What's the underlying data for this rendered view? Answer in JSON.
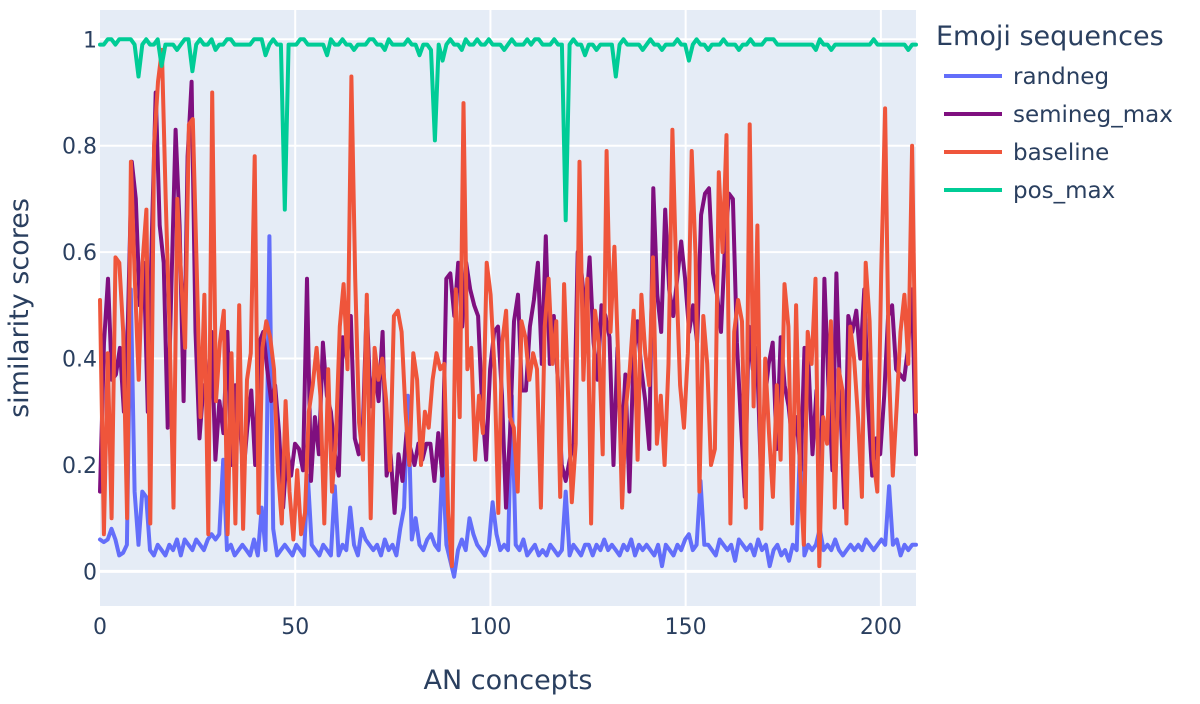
{
  "chart_data": {
    "type": "line",
    "title": "",
    "xlabel": "AN concepts",
    "ylabel": "similarity scores",
    "xlim": [
      0,
      209
    ],
    "ylim": [
      -0.065,
      1.055
    ],
    "x_ticks": [
      0,
      50,
      100,
      150,
      200
    ],
    "y_ticks": [
      0,
      0.2,
      0.4,
      0.6,
      0.8,
      1
    ],
    "y_tick_labels": [
      "0",
      "0.2",
      "0.4",
      "0.6",
      "0.8",
      "1"
    ],
    "grid": true,
    "legend": {
      "title": "Emoji sequences",
      "placement": "right"
    },
    "series": [
      {
        "name": "randneg",
        "color": "#636efa",
        "values": [
          0.06,
          0.055,
          0.06,
          0.08,
          0.06,
          0.03,
          0.035,
          0.05,
          0.53,
          0.15,
          0.05,
          0.15,
          0.14,
          0.04,
          0.03,
          0.05,
          0.04,
          0.03,
          0.05,
          0.04,
          0.06,
          0.03,
          0.06,
          0.05,
          0.04,
          0.06,
          0.05,
          0.04,
          0.06,
          0.07,
          0.06,
          0.07,
          0.21,
          0.04,
          0.05,
          0.03,
          0.04,
          0.05,
          0.04,
          0.03,
          0.06,
          0.03,
          0.12,
          0.04,
          0.63,
          0.08,
          0.03,
          0.04,
          0.05,
          0.04,
          0.03,
          0.05,
          0.04,
          0.03,
          0.18,
          0.05,
          0.04,
          0.03,
          0.05,
          0.04,
          0.03,
          0.16,
          0.03,
          0.05,
          0.04,
          0.12,
          0.05,
          0.03,
          0.08,
          0.06,
          0.05,
          0.04,
          0.05,
          0.03,
          0.06,
          0.04,
          0.05,
          0.03,
          0.08,
          0.12,
          0.33,
          0.06,
          0.1,
          0.05,
          0.04,
          0.06,
          0.07,
          0.05,
          0.04,
          0.21,
          0.05,
          0.02,
          -0.01,
          0.04,
          0.06,
          0.04,
          0.1,
          0.07,
          0.05,
          0.04,
          0.03,
          0.05,
          0.13,
          0.07,
          0.04,
          0.05,
          0.04,
          0.33,
          0.05,
          0.04,
          0.06,
          0.03,
          0.04,
          0.05,
          0.03,
          0.04,
          0.03,
          0.05,
          0.04,
          0.03,
          0.04,
          0.15,
          0.03,
          0.05,
          0.04,
          0.03,
          0.05,
          0.05,
          0.03,
          0.05,
          0.04,
          0.06,
          0.04,
          0.05,
          0.04,
          0.03,
          0.05,
          0.04,
          0.06,
          0.03,
          0.05,
          0.04,
          0.05,
          0.04,
          0.03,
          0.05,
          0.01,
          0.05,
          0.04,
          0.03,
          0.05,
          0.04,
          0.06,
          0.07,
          0.04,
          0.05,
          0.17,
          0.05,
          0.05,
          0.04,
          0.03,
          0.06,
          0.05,
          0.04,
          0.05,
          0.02,
          0.06,
          0.05,
          0.04,
          0.05,
          0.03,
          0.06,
          0.04,
          0.05,
          0.01,
          0.04,
          0.05,
          0.03,
          0.04,
          0.02,
          0.05,
          0.04,
          0.27,
          0.03,
          0.05,
          0.04,
          0.05,
          0.08,
          0.04,
          0.05,
          0.04,
          0.06,
          0.04,
          0.03,
          0.04,
          0.05,
          0.04,
          0.05,
          0.04,
          0.06,
          0.05,
          0.04,
          0.05,
          0.06,
          0.05,
          0.16,
          0.05,
          0.06,
          0.03,
          0.05,
          0.04,
          0.05,
          0.05
        ]
      },
      {
        "name": "semineg_max",
        "color": "#7f0f7f",
        "values": [
          0.15,
          0.43,
          0.55,
          0.36,
          0.37,
          0.42,
          0.3,
          0.47,
          0.77,
          0.7,
          0.5,
          0.58,
          0.3,
          0.62,
          0.9,
          0.65,
          0.58,
          0.27,
          0.55,
          0.83,
          0.65,
          0.32,
          0.78,
          0.92,
          0.45,
          0.25,
          0.35,
          0.32,
          0.45,
          0.21,
          0.32,
          0.26,
          0.45,
          0.2,
          0.35,
          0.3,
          0.18,
          0.27,
          0.34,
          0.2,
          0.43,
          0.45,
          0.38,
          0.32,
          0.35,
          0.26,
          0.12,
          0.23,
          0.18,
          0.24,
          0.23,
          0.19,
          0.55,
          0.17,
          0.29,
          0.22,
          0.43,
          0.33,
          0.3,
          0.22,
          0.18,
          0.44,
          0.4,
          0.48,
          0.25,
          0.22,
          0.26,
          0.5,
          0.31,
          0.38,
          0.32,
          0.45,
          0.18,
          0.22,
          0.11,
          0.22,
          0.17,
          0.26,
          0.23,
          0.2,
          0.24,
          0.21,
          0.24,
          0.24,
          0.17,
          0.26,
          0.18,
          0.55,
          0.56,
          0.48,
          0.58,
          0.46,
          0.58,
          0.53,
          0.5,
          0.48,
          0.31,
          0.21,
          0.38,
          0.45,
          0.46,
          0.33,
          0.12,
          0.26,
          0.47,
          0.52,
          0.34,
          0.34,
          0.46,
          0.51,
          0.58,
          0.39,
          0.63,
          0.39,
          0.48,
          0.36,
          0.2,
          0.17,
          0.21,
          0.24,
          0.6,
          0.56,
          0.48,
          0.59,
          0.43,
          0.36,
          0.5,
          0.48,
          0.44,
          0.2,
          0.42,
          0.23,
          0.37,
          0.15,
          0.4,
          0.47,
          0.38,
          0.32,
          0.23,
          0.72,
          0.52,
          0.45,
          0.68,
          0.53,
          0.48,
          0.55,
          0.62,
          0.55,
          0.45,
          0.5,
          0.43,
          0.67,
          0.71,
          0.72,
          0.56,
          0.52,
          0.45,
          0.61,
          0.71,
          0.7,
          0.43,
          0.28,
          0.14,
          0.46,
          0.38,
          0.42,
          0.19,
          0.32,
          0.39,
          0.43,
          0.23,
          0.44,
          0.35,
          0.31,
          0.24,
          0.29,
          0.19,
          0.42,
          0.39,
          0.22,
          0.34,
          0.12,
          0.55,
          0.35,
          0.19,
          0.56,
          0.31,
          0.12,
          0.48,
          0.45,
          0.49,
          0.4,
          0.53,
          0.31,
          0.18,
          0.25,
          0.22,
          0.33,
          0.48,
          0.5,
          0.38,
          0.37,
          0.36,
          0.42,
          0.53,
          0.22
        ]
      },
      {
        "name": "baseline",
        "color": "#ef553b",
        "values": [
          0.51,
          0.07,
          0.41,
          0.1,
          0.59,
          0.58,
          0.45,
          0.1,
          0.77,
          0.55,
          0.36,
          0.58,
          0.68,
          0.09,
          0.8,
          0.92,
          0.98,
          0.7,
          0.45,
          0.12,
          0.7,
          0.55,
          0.42,
          0.84,
          0.85,
          0.57,
          0.29,
          0.52,
          0.07,
          0.9,
          0.32,
          0.43,
          0.49,
          0.07,
          0.41,
          0.09,
          0.5,
          0.08,
          0.36,
          0.41,
          0.78,
          0.11,
          0.42,
          0.47,
          0.44,
          0.38,
          0.19,
          0.09,
          0.32,
          0.15,
          0.06,
          0.19,
          0.07,
          0.11,
          0.3,
          0.35,
          0.42,
          0.33,
          0.09,
          0.38,
          0.15,
          0.25,
          0.46,
          0.54,
          0.38,
          0.93,
          0.55,
          0.28,
          0.21,
          0.52,
          0.1,
          0.42,
          0.36,
          0.4,
          0.32,
          0.19,
          0.48,
          0.49,
          0.45,
          0.3,
          0.2,
          0.41,
          0.36,
          0.2,
          0.3,
          0.27,
          0.36,
          0.41,
          0.38,
          0.39,
          0.11,
          0.01,
          0.53,
          0.29,
          0.88,
          0.38,
          0.42,
          0.21,
          0.33,
          0.26,
          0.58,
          0.52,
          0.38,
          0.11,
          0.43,
          0.49,
          0.29,
          0.27,
          0.15,
          0.47,
          0.44,
          0.36,
          0.41,
          0.38,
          0.12,
          0.46,
          0.55,
          0.39,
          0.47,
          0.14,
          0.54,
          0.34,
          0.13,
          0.24,
          0.77,
          0.36,
          0.55,
          0.09,
          0.49,
          0.43,
          0.22,
          0.79,
          0.45,
          0.61,
          0.4,
          0.12,
          0.31,
          0.38,
          0.49,
          0.21,
          0.52,
          0.41,
          0.35,
          0.59,
          0.24,
          0.33,
          0.2,
          0.39,
          0.83,
          0.56,
          0.35,
          0.27,
          0.41,
          0.79,
          0.59,
          0.15,
          0.48,
          0.39,
          0.2,
          0.23,
          0.75,
          0.6,
          0.82,
          0.09,
          0.45,
          0.51,
          0.47,
          0.12,
          0.84,
          0.31,
          0.65,
          0.08,
          0.4,
          0.26,
          0.14,
          0.35,
          0.21,
          0.54,
          0.46,
          0.09,
          0.5,
          0.19,
          0.05,
          0.45,
          0.39,
          0.55,
          0.01,
          0.29,
          0.24,
          0.47,
          0.12,
          0.38,
          0.34,
          0.09,
          0.46,
          0.4,
          0.29,
          0.14,
          0.58,
          0.47,
          0.21,
          0.15,
          0.56,
          0.87,
          0.38,
          0.18,
          0.31,
          0.45,
          0.52,
          0.39,
          0.8,
          0.3
        ]
      },
      {
        "name": "pos_max",
        "color": "#00cc96",
        "values": [
          0.99,
          0.99,
          1,
          1,
          0.99,
          1,
          1,
          1,
          1,
          0.99,
          0.93,
          0.99,
          1,
          0.99,
          0.99,
          1,
          0.95,
          0.99,
          0.99,
          0.99,
          0.98,
          0.99,
          1,
          1,
          0.94,
          0.99,
          1,
          0.99,
          0.99,
          1,
          0.98,
          0.99,
          0.99,
          1,
          1,
          0.99,
          0.99,
          0.99,
          0.99,
          0.99,
          1,
          1,
          1,
          0.97,
          0.99,
          1,
          0.99,
          0.99,
          0.68,
          0.99,
          0.99,
          0.99,
          1,
          1,
          0.99,
          0.99,
          0.99,
          0.99,
          0.99,
          0.97,
          1,
          0.99,
          0.99,
          1,
          0.99,
          0.99,
          0.98,
          0.99,
          0.99,
          0.99,
          1,
          1,
          0.99,
          0.99,
          0.98,
          1,
          0.99,
          0.99,
          0.99,
          0.99,
          1,
          0.99,
          0.99,
          0.97,
          0.99,
          0.99,
          0.98,
          0.81,
          0.99,
          0.96,
          0.99,
          1,
          0.99,
          0.99,
          0.98,
          1,
          0.99,
          0.99,
          1,
          0.99,
          0.99,
          1,
          0.99,
          0.99,
          0.99,
          0.98,
          0.99,
          1,
          0.99,
          0.99,
          0.99,
          1,
          0.99,
          1,
          1,
          0.99,
          0.99,
          0.99,
          1,
          0.99,
          0.99,
          0.66,
          0.99,
          1,
          0.99,
          0.99,
          0.97,
          0.99,
          0.99,
          0.98,
          0.99,
          0.99,
          0.99,
          0.99,
          0.93,
          0.99,
          1,
          0.99,
          0.99,
          0.99,
          0.99,
          0.98,
          0.99,
          1,
          0.99,
          0.99,
          0.98,
          0.99,
          0.99,
          0.99,
          1,
          0.99,
          0.99,
          0.96,
          0.99,
          1,
          0.99,
          0.99,
          0.98,
          0.99,
          0.99,
          0.99,
          1,
          0.99,
          0.99,
          0.99,
          0.98,
          0.99,
          0.99,
          1,
          0.99,
          0.99,
          0.99,
          1,
          1,
          1,
          0.99,
          0.99,
          0.99,
          0.99,
          0.99,
          0.99,
          0.99,
          0.99,
          0.99,
          0.99,
          0.98,
          1,
          0.99,
          0.99,
          0.98,
          0.99,
          0.99,
          0.99,
          0.99,
          0.99,
          0.99,
          0.99,
          0.99,
          0.99,
          0.99,
          1,
          0.99,
          0.99,
          0.99,
          0.99,
          0.99,
          0.99,
          0.99,
          0.99,
          0.98,
          0.99,
          0.99
        ]
      }
    ]
  }
}
